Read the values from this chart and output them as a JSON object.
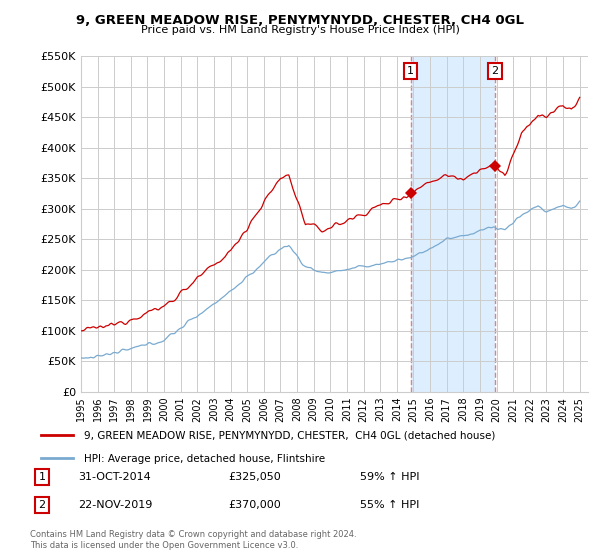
{
  "title": "9, GREEN MEADOW RISE, PENYMYNYDD, CHESTER, CH4 0GL",
  "subtitle": "Price paid vs. HM Land Registry's House Price Index (HPI)",
  "legend_label_red": "9, GREEN MEADOW RISE, PENYMYNYDD, CHESTER,  CH4 0GL (detached house)",
  "legend_label_blue": "HPI: Average price, detached house, Flintshire",
  "sale1_date": 2014.83,
  "sale1_label": "1",
  "sale1_price": 325050,
  "sale1_text": "31-OCT-2014",
  "sale1_hpi": "59% ↑ HPI",
  "sale2_date": 2019.9,
  "sale2_label": "2",
  "sale2_price": 370000,
  "sale2_text": "22-NOV-2019",
  "sale2_hpi": "55% ↑ HPI",
  "footnote1": "Contains HM Land Registry data © Crown copyright and database right 2024.",
  "footnote2": "This data is licensed under the Open Government Licence v3.0.",
  "ylim": [
    0,
    550000
  ],
  "yticks": [
    0,
    50000,
    100000,
    150000,
    200000,
    250000,
    300000,
    350000,
    400000,
    450000,
    500000,
    550000
  ],
  "ytick_labels": [
    "£0",
    "£50K",
    "£100K",
    "£150K",
    "£200K",
    "£250K",
    "£300K",
    "£350K",
    "£400K",
    "£450K",
    "£500K",
    "£550K"
  ],
  "red_color": "#cc0000",
  "blue_color": "#7aaad0",
  "shade_color": "#ddeeff",
  "dashed_color": "#e08080",
  "grid_color": "#cccccc",
  "bg_color": "#ffffff",
  "red_key_points": {
    "1995.0": 100000,
    "1997.0": 110000,
    "2000.0": 140000,
    "2004.0": 230000,
    "2007.0": 350000,
    "2007.5": 355000,
    "2008.5": 275000,
    "2009.5": 265000,
    "2011.0": 280000,
    "2013.0": 305000,
    "2014.83": 325050,
    "2016.0": 345000,
    "2017.0": 355000,
    "2018.0": 350000,
    "2019.0": 365000,
    "2019.9": 370000,
    "2020.5": 355000,
    "2021.5": 420000,
    "2022.5": 455000,
    "2023.0": 450000,
    "2024.0": 470000,
    "2024.5": 460000,
    "2025.0": 480000
  },
  "blue_key_points": {
    "1995.0": 55000,
    "1997.0": 63000,
    "2000.0": 85000,
    "2004.0": 165000,
    "2007.0": 235000,
    "2007.5": 240000,
    "2008.5": 205000,
    "2009.5": 195000,
    "2011.0": 200000,
    "2013.0": 210000,
    "2014.83": 220000,
    "2016.0": 235000,
    "2017.0": 250000,
    "2018.0": 255000,
    "2019.0": 265000,
    "2019.9": 270000,
    "2020.5": 265000,
    "2021.5": 290000,
    "2022.5": 305000,
    "2023.0": 295000,
    "2024.0": 305000,
    "2024.5": 300000,
    "2025.0": 310000
  }
}
